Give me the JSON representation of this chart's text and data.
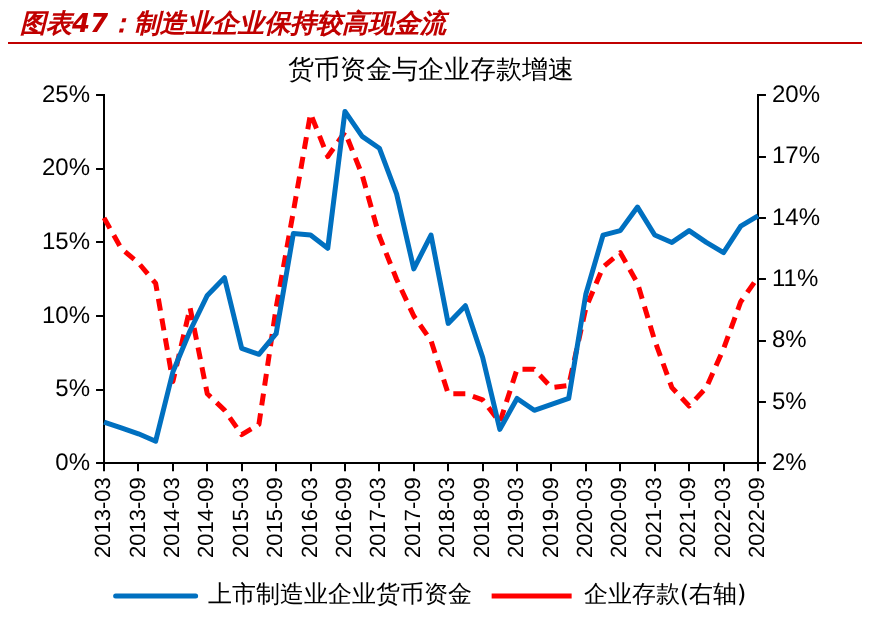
{
  "chart_data": {
    "type": "line",
    "title": "图表47：制造业企业保持较高现金流",
    "subtitle": "货币资金与企业存款增速",
    "categories": [
      "2013-03",
      null,
      "2013-09",
      null,
      "2014-03",
      null,
      "2014-09",
      null,
      "2015-03",
      null,
      "2015-09",
      null,
      "2016-03",
      null,
      "2016-09",
      null,
      "2017-03",
      null,
      "2017-09",
      null,
      "2018-03",
      null,
      "2018-09",
      null,
      "2019-03",
      null,
      "2019-09",
      null,
      "2020-03",
      null,
      "2020-09",
      null,
      "2021-03",
      null,
      "2021-09",
      null,
      "2022-03",
      null,
      "2022-09"
    ],
    "series": [
      {
        "name": "上市制造业企业货币资金",
        "color": "#0070c0",
        "line_style": "solid",
        "values": [
          2.8,
          2.4,
          2.0,
          1.5,
          6.2,
          9.0,
          11.4,
          12.6,
          7.8,
          7.4,
          8.8,
          15.6,
          15.5,
          14.6,
          23.9,
          22.2,
          21.4,
          18.3,
          13.2,
          15.5,
          9.5,
          10.7,
          7.2,
          2.3,
          4.4,
          3.6,
          4.0,
          4.4,
          11.5,
          15.5,
          15.8,
          17.4,
          15.5,
          15.0,
          15.8,
          15.0,
          14.3,
          16.1,
          16.8
        ]
      },
      {
        "name": "企业存款(右轴)",
        "color": "#ff0000",
        "line_style": "dashed",
        "axis": "y2",
        "values": [
          14.0,
          12.5,
          11.8,
          10.8,
          6.0,
          9.6,
          5.4,
          4.6,
          3.4,
          3.9,
          9.6,
          14.3,
          19.1,
          17.0,
          18.2,
          16.1,
          13.1,
          11.0,
          9.2,
          8.0,
          5.4,
          5.4,
          5.1,
          4.0,
          6.6,
          6.6,
          5.7,
          5.8,
          9.6,
          11.6,
          12.3,
          10.8,
          8.0,
          5.7,
          4.8,
          5.7,
          7.6,
          9.9,
          11.1
        ]
      }
    ],
    "ylim": [
      0,
      25
    ],
    "yticks": [
      {
        "value": 0,
        "label": "0%"
      },
      {
        "value": 5,
        "label": "5%"
      },
      {
        "value": 10,
        "label": "10%"
      },
      {
        "value": 15,
        "label": "15%"
      },
      {
        "value": 20,
        "label": "20%"
      },
      {
        "value": 25,
        "label": "25%"
      }
    ],
    "y2lim": [
      2,
      20
    ],
    "y2ticks": [
      {
        "value": 2,
        "label": "2%"
      },
      {
        "value": 5,
        "label": "5%"
      },
      {
        "value": 8,
        "label": "8%"
      },
      {
        "value": 11,
        "label": "11%"
      },
      {
        "value": 14,
        "label": "14%"
      },
      {
        "value": 17,
        "label": "17%"
      },
      {
        "value": 20,
        "label": "20%"
      }
    ],
    "grid": false,
    "legend": "bottom",
    "marker": "none"
  }
}
